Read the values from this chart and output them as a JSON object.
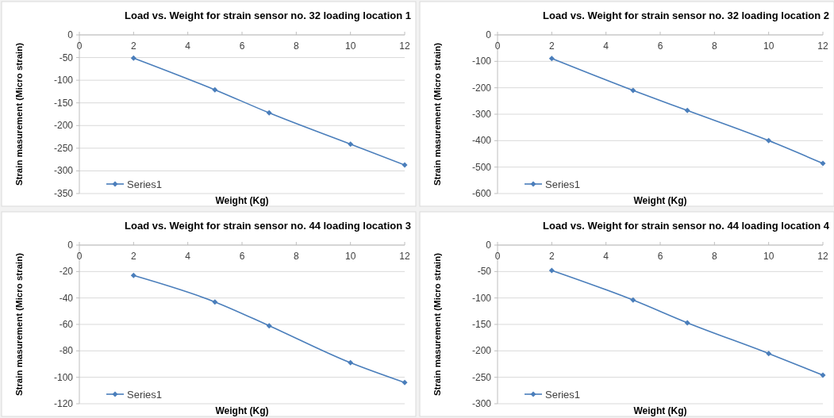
{
  "chart_data": [
    {
      "type": "line",
      "title": "Load vs. Weight for strain sensor no. 32 loading location 1",
      "xlabel": "Weight (Kg)",
      "ylabel": "Strain masurement (Micro strain)",
      "x": [
        2,
        5,
        7,
        10,
        12
      ],
      "series": [
        {
          "name": "Series1",
          "color": "#4a7ebb",
          "values": [
            -51,
            -121,
            -172,
            -241,
            -287
          ]
        }
      ],
      "xlim": [
        0,
        12
      ],
      "xticks": [
        0,
        2,
        4,
        6,
        8,
        10,
        12
      ],
      "ylim": [
        -350,
        0
      ],
      "yticks": [
        -350,
        -300,
        -250,
        -200,
        -150,
        -100,
        -50,
        0
      ],
      "grid": "y",
      "legend": "bottom left",
      "marker": "diamond"
    },
    {
      "type": "line",
      "title": "Load vs. Weight for strain sensor no. 32 loading location 2",
      "xlabel": "Weight (Kg)",
      "ylabel": "Strain masurement (Micro strain)",
      "x": [
        2,
        5,
        7,
        10,
        12
      ],
      "series": [
        {
          "name": "Series1",
          "color": "#4a7ebb",
          "values": [
            -89,
            -210,
            -286,
            -400,
            -486
          ]
        }
      ],
      "xlim": [
        0,
        12
      ],
      "xticks": [
        0,
        2,
        4,
        6,
        8,
        10,
        12
      ],
      "ylim": [
        -600,
        0
      ],
      "yticks": [
        -600,
        -500,
        -400,
        -300,
        -200,
        -100,
        0
      ],
      "grid": "y",
      "legend": "bottom left",
      "marker": "diamond"
    },
    {
      "type": "line",
      "title": "Load vs. Weight for strain sensor no. 44 loading location 3",
      "xlabel": "Weight (Kg)",
      "ylabel": "Strain masurement (Micro strain)",
      "x": [
        2,
        5,
        7,
        10,
        12
      ],
      "series": [
        {
          "name": "Series1",
          "color": "#4a7ebb",
          "values": [
            -23,
            -43,
            -61,
            -89,
            -104
          ]
        }
      ],
      "xlim": [
        0,
        12
      ],
      "xticks": [
        0,
        2,
        4,
        6,
        8,
        10,
        12
      ],
      "ylim": [
        -120,
        0
      ],
      "yticks": [
        -120,
        -100,
        -80,
        -60,
        -40,
        -20,
        0
      ],
      "grid": "y",
      "legend": "bottom left",
      "marker": "diamond"
    },
    {
      "type": "line",
      "title": "Load vs. Weight for strain sensor no. 44 loading location 4",
      "xlabel": "Weight (Kg)",
      "ylabel": "Strain masurement (Micro strain)",
      "x": [
        2,
        5,
        7,
        10,
        12
      ],
      "series": [
        {
          "name": "Series1",
          "color": "#4a7ebb",
          "values": [
            -48,
            -104,
            -147,
            -205,
            -246
          ]
        }
      ],
      "xlim": [
        0,
        12
      ],
      "xticks": [
        0,
        2,
        4,
        6,
        8,
        10,
        12
      ],
      "ylim": [
        -300,
        0
      ],
      "yticks": [
        -300,
        -250,
        -200,
        -150,
        -100,
        -50,
        0
      ],
      "grid": "y",
      "legend": "bottom left",
      "marker": "diamond"
    }
  ]
}
